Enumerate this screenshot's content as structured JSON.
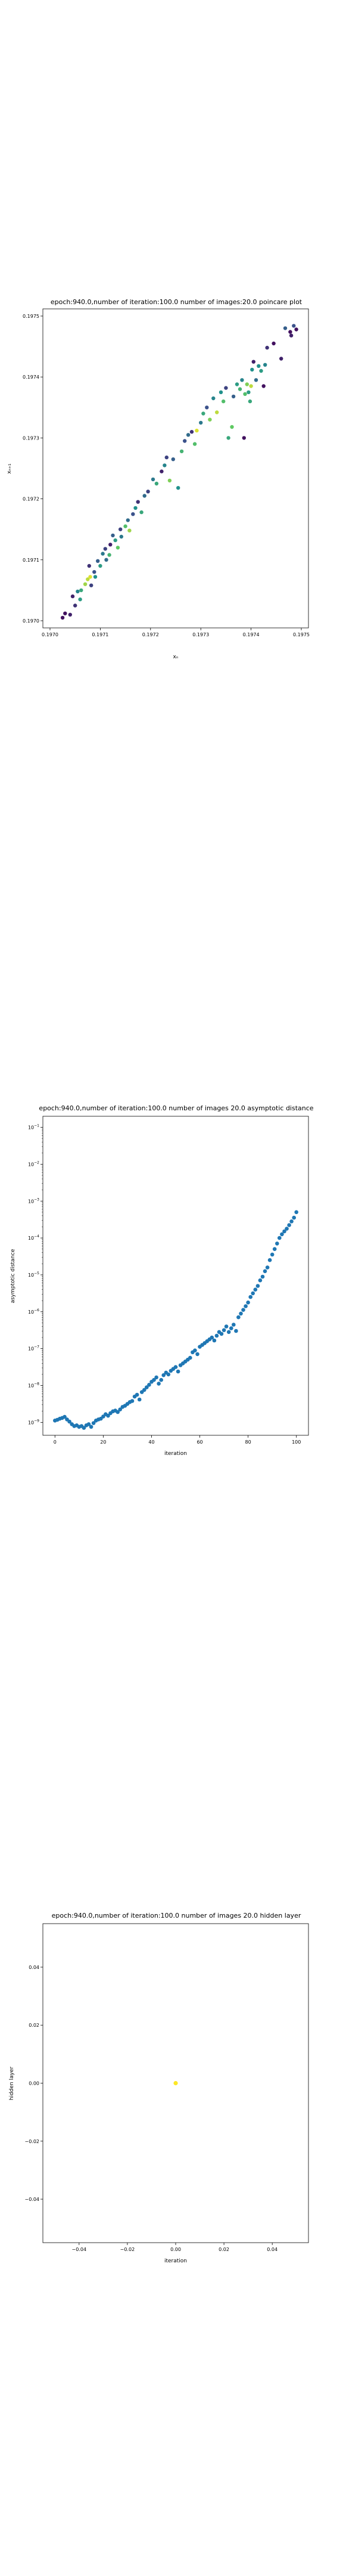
{
  "charts": [
    {
      "title": "epoch:940.0,number of iteration:100.0 number of images:20.0 poincare plot",
      "xlabel": "xₙ",
      "ylabel": "xₙ₊₁"
    },
    {
      "title": "epoch:940.0,number of iteration:100.0  number of images 20.0 asymptotic distance",
      "xlabel": "iteration",
      "ylabel": "asymptotic distance"
    },
    {
      "title": "epoch:940.0,number of iteration:100.0  number of images 20.0 hidden layer",
      "xlabel": "iteration",
      "ylabel": "hidden layer"
    }
  ],
  "chart_data": [
    {
      "type": "scatter",
      "title": "epoch:940.0,number of iteration:100.0 number of images:20.0 poincare plot",
      "xlabel": "xₙ",
      "ylabel": "xₙ₊₁",
      "xlim": [
        0.197,
        0.1975
      ],
      "ylim": [
        0.197,
        0.1975
      ],
      "xticks": [
        "0.19700",
        "0.19710",
        "0.19720",
        "0.19730",
        "0.19740",
        "0.19750"
      ],
      "xtick_labels": [
        "0.1970",
        "0.1971",
        "0.1972",
        "0.1973",
        "0.1974",
        "0.1975"
      ],
      "yticks": [
        "0.19700",
        "0.19710",
        "0.19720",
        "0.19730",
        "0.19740",
        "0.19750"
      ],
      "ytick_labels": [
        "0.1970",
        "0.1971",
        "0.1972",
        "0.1973",
        "0.1974",
        "0.1975"
      ],
      "colormap": "viridis",
      "points": [
        [
          0.197025,
          0.197005,
          0.05
        ],
        [
          0.19703,
          0.197012,
          0.05
        ],
        [
          0.19704,
          0.19701,
          0.1
        ],
        [
          0.19705,
          0.197025,
          0.15
        ],
        [
          0.197045,
          0.19704,
          0.1
        ],
        [
          0.197055,
          0.197048,
          0.45
        ],
        [
          0.19706,
          0.197035,
          0.55
        ],
        [
          0.197062,
          0.19705,
          0.6
        ],
        [
          0.19707,
          0.19706,
          0.85
        ],
        [
          0.197075,
          0.197068,
          0.9
        ],
        [
          0.19708,
          0.197072,
          0.95
        ],
        [
          0.197082,
          0.197058,
          0.2
        ],
        [
          0.197078,
          0.19709,
          0.15
        ],
        [
          0.197088,
          0.19708,
          0.25
        ],
        [
          0.19709,
          0.197072,
          0.5
        ],
        [
          0.197095,
          0.197098,
          0.3
        ],
        [
          0.1971,
          0.19709,
          0.55
        ],
        [
          0.197105,
          0.19711,
          0.4
        ],
        [
          0.19711,
          0.197118,
          0.2
        ],
        [
          0.197112,
          0.1971,
          0.35
        ],
        [
          0.197118,
          0.197108,
          0.65
        ],
        [
          0.19712,
          0.197125,
          0.1
        ],
        [
          0.197125,
          0.19714,
          0.3
        ],
        [
          0.19713,
          0.197132,
          0.55
        ],
        [
          0.197135,
          0.19712,
          0.75
        ],
        [
          0.19714,
          0.19715,
          0.2
        ],
        [
          0.197142,
          0.197138,
          0.4
        ],
        [
          0.19715,
          0.197155,
          0.7
        ],
        [
          0.197155,
          0.197165,
          0.35
        ],
        [
          0.197158,
          0.197148,
          0.85
        ],
        [
          0.197165,
          0.197175,
          0.25
        ],
        [
          0.19717,
          0.197185,
          0.5
        ],
        [
          0.197175,
          0.197195,
          0.15
        ],
        [
          0.197182,
          0.197178,
          0.6
        ],
        [
          0.197188,
          0.197205,
          0.35
        ],
        [
          0.197195,
          0.197212,
          0.2
        ],
        [
          0.197205,
          0.197232,
          0.4
        ],
        [
          0.197212,
          0.197225,
          0.6
        ],
        [
          0.197222,
          0.197245,
          0.1
        ],
        [
          0.197228,
          0.197255,
          0.45
        ],
        [
          0.197232,
          0.197268,
          0.2
        ],
        [
          0.197238,
          0.19723,
          0.8
        ],
        [
          0.197245,
          0.197265,
          0.3
        ],
        [
          0.197255,
          0.197218,
          0.5
        ],
        [
          0.197262,
          0.197278,
          0.65
        ],
        [
          0.197268,
          0.197295,
          0.25
        ],
        [
          0.197275,
          0.197305,
          0.35
        ],
        [
          0.197282,
          0.19731,
          0.15
        ],
        [
          0.197288,
          0.19729,
          0.7
        ],
        [
          0.197292,
          0.197312,
          0.95
        ],
        [
          0.1973,
          0.197325,
          0.4
        ],
        [
          0.197305,
          0.19734,
          0.6
        ],
        [
          0.197312,
          0.19735,
          0.25
        ],
        [
          0.197318,
          0.19733,
          0.8
        ],
        [
          0.197325,
          0.197365,
          0.45
        ],
        [
          0.197332,
          0.197342,
          0.9
        ],
        [
          0.19734,
          0.197375,
          0.5
        ],
        [
          0.197345,
          0.19736,
          0.7
        ],
        [
          0.19735,
          0.197382,
          0.2
        ],
        [
          0.197355,
          0.1973,
          0.6
        ],
        [
          0.197362,
          0.197318,
          0.75
        ],
        [
          0.197365,
          0.197368,
          0.3
        ],
        [
          0.197372,
          0.197388,
          0.55
        ],
        [
          0.197378,
          0.19738,
          0.65
        ],
        [
          0.197382,
          0.197395,
          0.45
        ],
        [
          0.197386,
          0.1973,
          0.05
        ],
        [
          0.197388,
          0.197372,
          0.7
        ],
        [
          0.197392,
          0.197388,
          0.8
        ],
        [
          0.197395,
          0.197375,
          0.55
        ],
        [
          0.197398,
          0.19736,
          0.6
        ],
        [
          0.1974,
          0.197385,
          0.9
        ],
        [
          0.197402,
          0.197412,
          0.5
        ],
        [
          0.197405,
          0.197425,
          0.1
        ],
        [
          0.19741,
          0.197395,
          0.35
        ],
        [
          0.197415,
          0.197418,
          0.5
        ],
        [
          0.19742,
          0.19741,
          0.55
        ],
        [
          0.197425,
          0.197385,
          0.05
        ],
        [
          0.197428,
          0.19742,
          0.45
        ],
        [
          0.197432,
          0.197448,
          0.15
        ],
        [
          0.197445,
          0.197455,
          0.05
        ],
        [
          0.19746,
          0.19743,
          0.1
        ],
        [
          0.197468,
          0.19748,
          0.3
        ],
        [
          0.197478,
          0.197474,
          0.05
        ],
        [
          0.19748,
          0.197468,
          0.1
        ],
        [
          0.197485,
          0.197484,
          0.25
        ],
        [
          0.19749,
          0.197478,
          0.05
        ]
      ]
    },
    {
      "type": "scatter",
      "title": "epoch:940.0,number of iteration:100.0  number of images 20.0 asymptotic distance",
      "xlabel": "iteration",
      "ylabel": "asymptotic distance",
      "yscale": "log",
      "xlim": [
        -5,
        105
      ],
      "ylim_log10": [
        -9.35,
        -0.7
      ],
      "xticks": [
        0,
        20,
        40,
        60,
        80,
        100
      ],
      "yticks": [
        "10^-9",
        "10^-8",
        "10^-7",
        "10^-6",
        "10^-5",
        "10^-4",
        "10^-3",
        "10^-2",
        "10^-1"
      ],
      "color": "#1f77b4",
      "x": [
        0,
        1,
        2,
        3,
        4,
        5,
        6,
        7,
        8,
        9,
        10,
        11,
        12,
        13,
        14,
        15,
        16,
        17,
        18,
        19,
        20,
        21,
        22,
        23,
        24,
        25,
        26,
        27,
        28,
        29,
        30,
        31,
        32,
        33,
        34,
        35,
        36,
        37,
        38,
        39,
        40,
        41,
        42,
        43,
        44,
        45,
        46,
        47,
        48,
        49,
        50,
        51,
        52,
        53,
        54,
        55,
        56,
        57,
        58,
        59,
        60,
        61,
        62,
        63,
        64,
        65,
        66,
        67,
        68,
        69,
        70,
        71,
        72,
        73,
        74,
        75,
        76,
        77,
        78,
        79,
        80,
        81,
        82,
        83,
        84,
        85,
        86,
        87,
        88,
        89,
        90,
        91,
        92,
        93,
        94,
        95,
        96,
        97,
        98,
        99,
        100
      ],
      "y_log10": [
        -8.95,
        -8.93,
        -8.9,
        -8.88,
        -8.85,
        -8.92,
        -8.98,
        -9.05,
        -9.1,
        -9.08,
        -9.12,
        -9.1,
        -9.15,
        -9.08,
        -9.05,
        -9.12,
        -9.02,
        -8.95,
        -8.92,
        -8.9,
        -8.84,
        -8.78,
        -8.82,
        -8.75,
        -8.7,
        -8.68,
        -8.72,
        -8.65,
        -8.58,
        -8.55,
        -8.5,
        -8.45,
        -8.42,
        -8.3,
        -8.25,
        -8.38,
        -8.18,
        -8.12,
        -8.05,
        -7.98,
        -7.9,
        -7.85,
        -7.78,
        -7.95,
        -7.85,
        -7.72,
        -7.65,
        -7.7,
        -7.6,
        -7.55,
        -7.5,
        -7.62,
        -7.45,
        -7.4,
        -7.35,
        -7.3,
        -7.25,
        -7.1,
        -7.05,
        -7.15,
        -6.95,
        -6.9,
        -6.85,
        -6.8,
        -6.75,
        -6.7,
        -6.78,
        -6.65,
        -6.55,
        -6.6,
        -6.5,
        -6.4,
        -6.55,
        -6.45,
        -6.35,
        -6.52,
        -6.15,
        -6.05,
        -5.95,
        -5.85,
        -5.75,
        -5.6,
        -5.5,
        -5.4,
        -5.3,
        -5.15,
        -5.05,
        -4.9,
        -4.8,
        -4.6,
        -4.45,
        -4.3,
        -4.15,
        -4.0,
        -3.9,
        -3.82,
        -3.75,
        -3.65,
        -3.55,
        -3.45,
        -3.3
      ]
    },
    {
      "type": "scatter",
      "title": "epoch:940.0,number of iteration:100.0  number of images 20.0 hidden layer",
      "xlabel": "iteration",
      "ylabel": "hidden layer",
      "xlim": [
        -0.055,
        0.055
      ],
      "ylim": [
        -0.055,
        0.055
      ],
      "xticks": [
        -0.04,
        -0.02,
        0.0,
        0.02,
        0.04
      ],
      "xtick_labels": [
        "−0.04",
        "−0.02",
        "0.00",
        "0.02",
        "0.04"
      ],
      "yticks": [
        -0.04,
        -0.02,
        0.0,
        0.02,
        0.04
      ],
      "ytick_labels": [
        "−0.04",
        "−0.02",
        "0.00",
        "0.02",
        "0.04"
      ],
      "color": "#fde725",
      "points": [
        [
          0.0,
          0.0
        ]
      ]
    }
  ]
}
